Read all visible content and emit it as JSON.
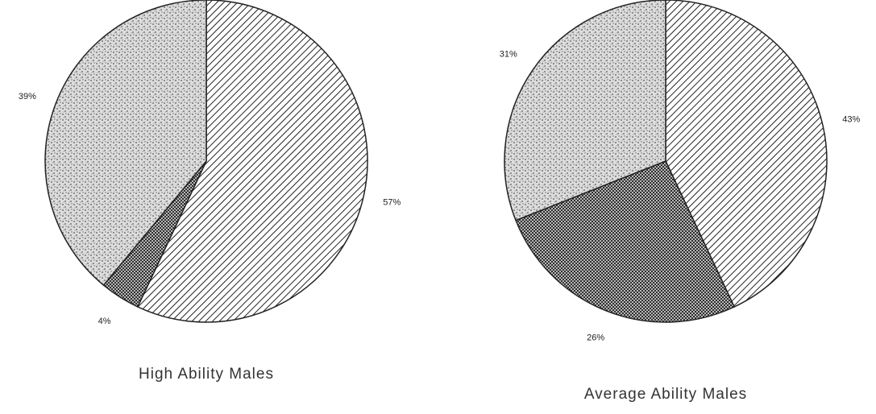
{
  "chart_data": [
    {
      "type": "pie",
      "title": "High Ability Males",
      "values": [
        57,
        4,
        39
      ],
      "value_labels": [
        "57%",
        "4%",
        "39%"
      ]
    },
    {
      "type": "pie",
      "title": "Average Ability Males",
      "values": [
        43,
        26,
        31
      ],
      "value_labels": [
        "43%",
        "26%",
        "31%"
      ]
    }
  ]
}
